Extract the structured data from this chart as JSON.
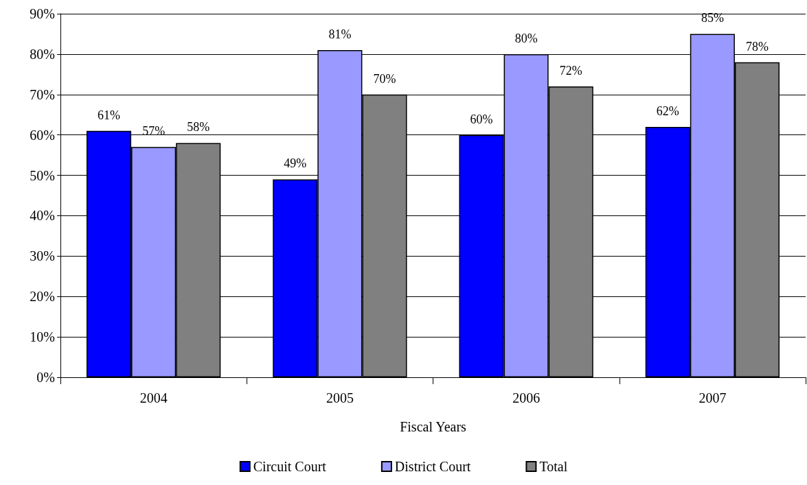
{
  "chart_data": {
    "type": "bar",
    "xlabel": "Fiscal Years",
    "categories": [
      "2004",
      "2005",
      "2006",
      "2007"
    ],
    "series": [
      {
        "name": "Circuit Court",
        "color": "#0000ff",
        "values": [
          61,
          49,
          60,
          62
        ],
        "value_labels": [
          "61%",
          "49%",
          "60%",
          "62%"
        ]
      },
      {
        "name": "District Court",
        "color": "#9999ff",
        "values": [
          57,
          81,
          80,
          85
        ],
        "value_labels": [
          "57%",
          "81%",
          "80%",
          "85%"
        ]
      },
      {
        "name": "Total",
        "color": "#808080",
        "values": [
          58,
          70,
          72,
          78
        ],
        "value_labels": [
          "58%",
          "70%",
          "72%",
          "78%"
        ]
      }
    ],
    "ylim": [
      0,
      90
    ],
    "yticks": [
      {
        "value": 0,
        "label": "0%"
      },
      {
        "value": 10,
        "label": "10%"
      },
      {
        "value": 20,
        "label": "20%"
      },
      {
        "value": 30,
        "label": "30%"
      },
      {
        "value": 40,
        "label": "40%"
      },
      {
        "value": 50,
        "label": "50%"
      },
      {
        "value": 60,
        "label": "60%"
      },
      {
        "value": 70,
        "label": "70%"
      },
      {
        "value": 80,
        "label": "80%"
      },
      {
        "value": 90,
        "label": "90%"
      }
    ],
    "grid": "y",
    "legend": "bottom"
  }
}
